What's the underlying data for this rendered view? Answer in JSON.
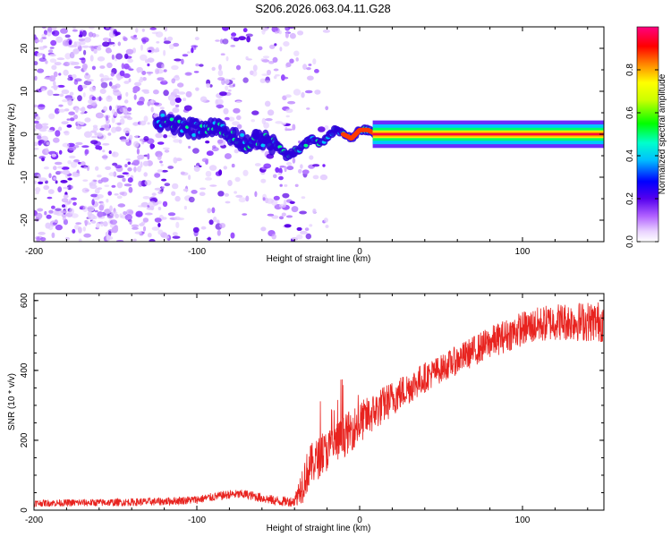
{
  "title": "S206.2026.063.04.11.G28",
  "chart_data": [
    {
      "type": "heatmap",
      "name": "spectrogram",
      "xlabel": "Height of straight line (km)",
      "ylabel": "Frequency (Hz)",
      "xlim": [
        -200,
        150
      ],
      "ylim": [
        -25,
        25
      ],
      "x_ticks": [
        -200,
        -100,
        0,
        100
      ],
      "x_tick_labels": [
        "-200",
        "-100",
        "0",
        "100"
      ],
      "y_ticks": [
        -20,
        -10,
        0,
        10,
        20
      ],
      "y_tick_labels": [
        "-20",
        "-10",
        "0",
        "10",
        "20"
      ],
      "ridge": {
        "heights": [
          -120,
          -110,
          -100,
          -90,
          -80,
          -70,
          -60,
          -50,
          -45,
          -40,
          -35,
          -30,
          -25,
          -20,
          -15,
          -10,
          -5,
          0,
          5,
          10,
          150
        ],
        "frequencies": [
          3,
          2,
          1,
          2,
          0,
          -2,
          -1,
          -3,
          -5,
          -4,
          -3,
          -1,
          -2,
          -1,
          1,
          0,
          -1,
          1,
          1,
          0,
          0
        ]
      },
      "colorbar": {
        "label": "Normalized spectral amplitude",
        "range": [
          0.0,
          1.0
        ],
        "ticks": [
          0.0,
          0.2,
          0.4,
          0.6,
          0.8
        ],
        "tick_labels": [
          "0.0",
          "0.2",
          "0.4",
          "0.6",
          "0.8"
        ]
      }
    },
    {
      "type": "line",
      "name": "snr",
      "xlabel": "Height of straight line (km)",
      "ylabel": "SNR (10 * v/v)",
      "xlim": [
        -200,
        150
      ],
      "ylim": [
        0,
        620
      ],
      "x_ticks": [
        -200,
        -100,
        0,
        100
      ],
      "x_tick_labels": [
        "-200",
        "-100",
        "0",
        "100"
      ],
      "y_ticks": [
        0,
        200,
        400,
        600
      ],
      "y_tick_labels": [
        "0",
        "200",
        "400",
        "600"
      ],
      "color": "#e8231f",
      "trend": {
        "x": [
          -200,
          -150,
          -120,
          -100,
          -80,
          -70,
          -60,
          -50,
          -40,
          -35,
          -30,
          -20,
          -10,
          0,
          20,
          40,
          60,
          80,
          100,
          120,
          150
        ],
        "y": [
          20,
          22,
          25,
          30,
          45,
          45,
          35,
          25,
          25,
          80,
          130,
          170,
          210,
          250,
          320,
          380,
          430,
          480,
          520,
          540,
          540
        ]
      },
      "noise_amplitude": {
        "x": [
          -200,
          -100,
          -40,
          -35,
          0,
          50,
          100,
          150
        ],
        "y": [
          10,
          12,
          15,
          60,
          60,
          40,
          50,
          60
        ]
      }
    }
  ]
}
